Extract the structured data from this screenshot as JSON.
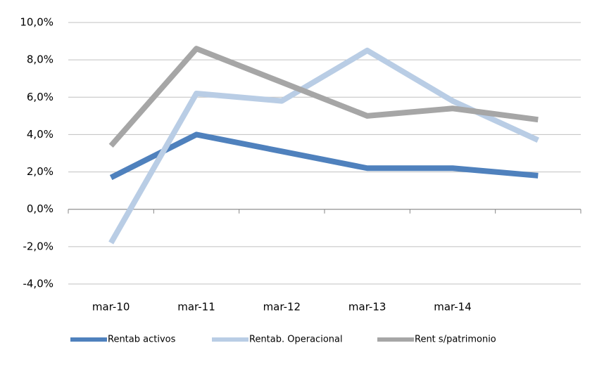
{
  "chart_data": {
    "type": "line",
    "categories": [
      "mar-10",
      "mar-11",
      "mar-12",
      "mar-13",
      "mar-14",
      null
    ],
    "series": [
      {
        "name": "Rentab activos",
        "color": "#4f81bd",
        "values": [
          1.7,
          4.0,
          3.1,
          2.2,
          2.2,
          1.8
        ]
      },
      {
        "name": "Rentab. Operacional",
        "color": "#b9cde5",
        "values": [
          -1.8,
          6.2,
          5.8,
          8.5,
          5.8,
          3.7
        ]
      },
      {
        "name": "Rent s/patrimonio",
        "color": "#a6a6a6",
        "values": [
          3.4,
          8.6,
          6.8,
          5.0,
          5.4,
          4.8
        ]
      }
    ],
    "ylim": [
      -4,
      10
    ],
    "yticks": [
      {
        "value": -4,
        "label": "-4,0%"
      },
      {
        "value": -2,
        "label": "-2,0%"
      },
      {
        "value": 0,
        "label": "0,0%"
      },
      {
        "value": 2,
        "label": "2,0%"
      },
      {
        "value": 4,
        "label": "4,0%"
      },
      {
        "value": 6,
        "label": "6,0%"
      },
      {
        "value": 8,
        "label": "8,0%"
      },
      {
        "value": 10,
        "label": "10,0%"
      }
    ],
    "grid": true,
    "legend": "bottom"
  }
}
